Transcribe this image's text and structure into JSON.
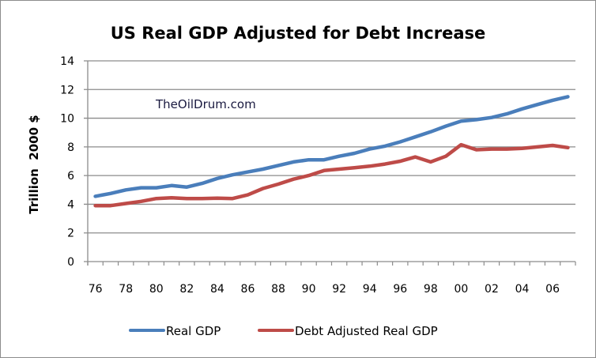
{
  "chart_data": {
    "type": "line",
    "title": "US Real GDP Adjusted for Debt Increase",
    "xlabel": "",
    "ylabel": "Trillion  2000 $",
    "ylim": [
      0,
      14
    ],
    "yticks": [
      "0",
      "2",
      "4",
      "6",
      "8",
      "10",
      "12",
      "14"
    ],
    "x": [
      "1976",
      "1977",
      "1978",
      "1979",
      "1980",
      "1981",
      "1982",
      "1983",
      "1984",
      "1985",
      "1986",
      "1987",
      "1988",
      "1989",
      "1990",
      "1991",
      "1992",
      "1993",
      "1994",
      "1995",
      "1996",
      "1997",
      "1998",
      "1999",
      "2000",
      "2001",
      "2002",
      "2003",
      "2004",
      "2005",
      "2006",
      "2007"
    ],
    "xtick_labels": [
      "76",
      "78",
      "80",
      "82",
      "84",
      "86",
      "88",
      "90",
      "92",
      "94",
      "96",
      "98",
      "00",
      "02",
      "04",
      "06"
    ],
    "grid": true,
    "legend_position": "bottom",
    "annotation": "TheOilDrum.com",
    "series": [
      {
        "name": "Real GDP",
        "color": "#4a7ebb",
        "values": [
          4.55,
          4.75,
          5.0,
          5.15,
          5.15,
          5.3,
          5.2,
          5.45,
          5.8,
          6.05,
          6.25,
          6.45,
          6.7,
          6.95,
          7.1,
          7.1,
          7.35,
          7.55,
          7.85,
          8.05,
          8.35,
          8.7,
          9.05,
          9.45,
          9.8,
          9.9,
          10.05,
          10.3,
          10.65,
          10.95,
          11.25,
          11.5
        ]
      },
      {
        "name": "Debt Adjusted Real GDP",
        "color": "#be4b48",
        "values": [
          3.9,
          3.9,
          4.05,
          4.2,
          4.4,
          4.45,
          4.4,
          4.4,
          4.42,
          4.4,
          4.65,
          5.1,
          5.4,
          5.75,
          6.0,
          6.35,
          6.45,
          6.55,
          6.65,
          6.8,
          7.0,
          7.3,
          6.95,
          7.35,
          8.15,
          7.8,
          7.85,
          7.85,
          7.9,
          8.0,
          8.1,
          7.95
        ]
      }
    ]
  }
}
